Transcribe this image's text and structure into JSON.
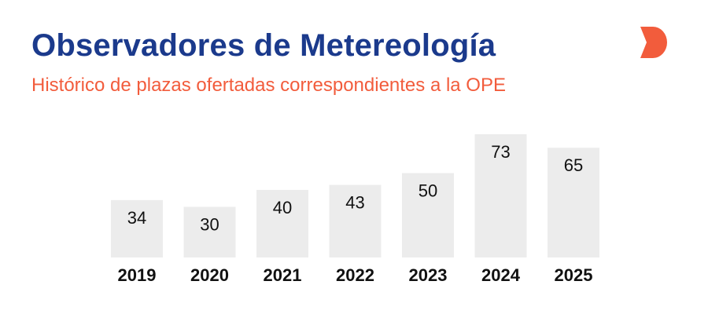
{
  "header": {
    "title": "Observadores de Metereología",
    "subtitle": "Histórico de plazas ofertadas correspondientes a la OPE"
  },
  "colors": {
    "title": "#1b3a8c",
    "subtitle": "#f25c3c",
    "bar": "#ececec",
    "text": "#111111",
    "logo": "#f25c3c"
  },
  "chart_data": {
    "type": "bar",
    "categories": [
      "2019",
      "2020",
      "2021",
      "2022",
      "2023",
      "2024",
      "2025"
    ],
    "values": [
      34,
      30,
      40,
      43,
      50,
      73,
      65
    ],
    "title": "",
    "xlabel": "",
    "ylabel": "",
    "ylim": [
      0,
      73
    ],
    "grid": false,
    "data_labels": true
  }
}
